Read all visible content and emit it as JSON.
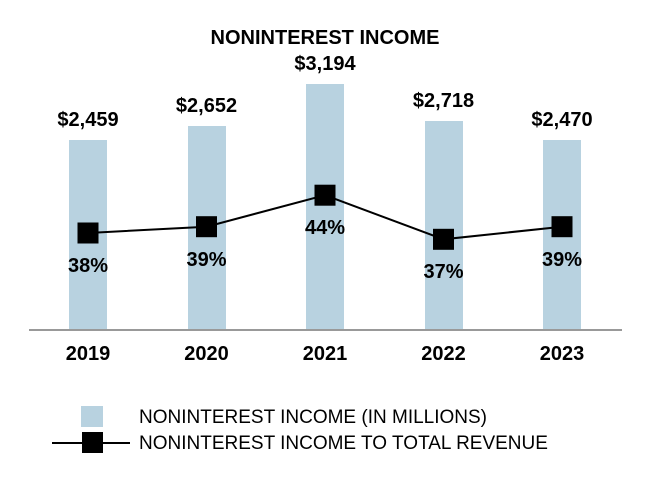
{
  "chart_data": {
    "type": "bar",
    "title": "NONINTEREST INCOME",
    "categories": [
      "2019",
      "2020",
      "2021",
      "2022",
      "2023"
    ],
    "series": [
      {
        "name": "NONINTEREST INCOME (IN MILLIONS)",
        "type": "bar",
        "color": "#B8D2E0",
        "values": [
          2459,
          2652,
          3194,
          2718,
          2470
        ],
        "labels": [
          "$2,459",
          "$2,652",
          "$3,194",
          "$2,718",
          "$2,470"
        ]
      },
      {
        "name": "NONINTEREST INCOME TO TOTAL REVENUE",
        "type": "line",
        "color": "#000000",
        "marker": "square",
        "values": [
          38,
          39,
          44,
          37,
          39
        ],
        "labels": [
          "38%",
          "39%",
          "44%",
          "37%",
          "39%"
        ]
      }
    ],
    "legend_position": "bottom",
    "grid": false,
    "axis_color": "#999999",
    "ylim": [
      0,
      3500
    ]
  }
}
